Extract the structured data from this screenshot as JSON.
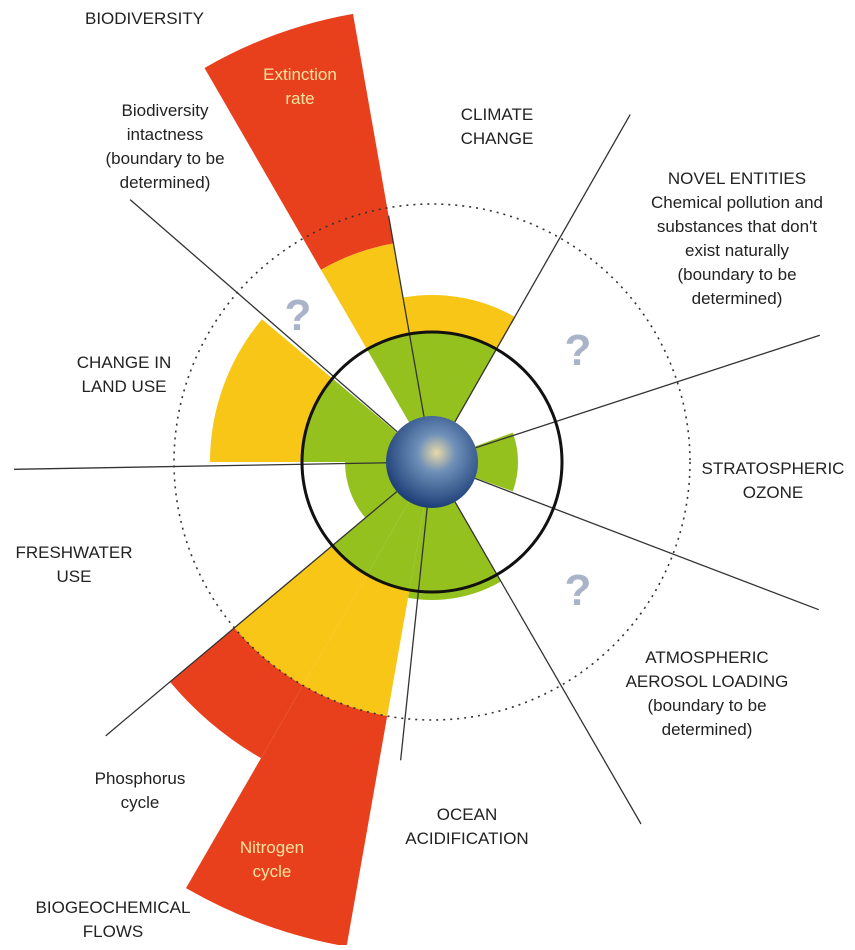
{
  "labels": {
    "biodiversity": "BIODIVERSITY",
    "extinction_rate": [
      "Extinction",
      "rate"
    ],
    "biodiversity_intactness": [
      "Biodiversity",
      "intactness",
      "(boundary to be",
      "determined)"
    ],
    "climate_change": [
      "CLIMATE",
      "CHANGE"
    ],
    "novel_entities": [
      "NOVEL ENTITIES",
      "Chemical pollution and",
      "substances that don't",
      "exist naturally",
      "(boundary to be",
      "determined)"
    ],
    "stratospheric_ozone": [
      "STRATOSPHERIC",
      "OZONE"
    ],
    "aerosol": [
      "ATMOSPHERIC",
      "AEROSOL LOADING",
      "(boundary to be",
      "determined)"
    ],
    "ocean_acidification": [
      "OCEAN",
      "ACIDIFICATION"
    ],
    "nitrogen_cycle": [
      "Nitrogen",
      "cycle"
    ],
    "phosphorus_cycle": [
      "Phosphorus",
      "cycle"
    ],
    "biogeochemical_flows": [
      "BIOGEOCHEMICAL",
      "FLOWS"
    ],
    "freshwater_use": [
      "FRESHWATER",
      "USE"
    ],
    "land_use": [
      "CHANGE IN",
      "LAND USE"
    ],
    "unknown_mark": "?"
  }
}
